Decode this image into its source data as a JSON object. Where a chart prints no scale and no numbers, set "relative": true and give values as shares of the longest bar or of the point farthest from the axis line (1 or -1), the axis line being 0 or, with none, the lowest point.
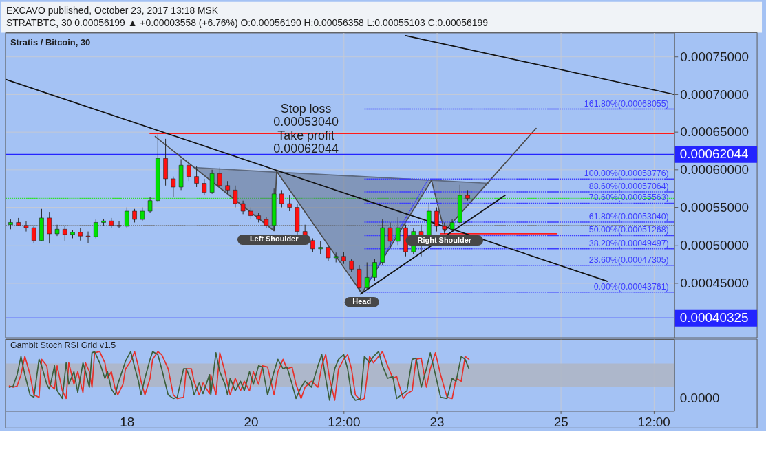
{
  "chart_data": [
    {
      "type": "candlestick",
      "title": "Stratis / Bitcoin, 30",
      "annotations": [
        "EXCAVO published, October 23, 2017 13:18 MSK",
        "STRATBTC, 30 0.00056199 ▲ +0.00003558 (+6.76%) O:0.00056190 H:0.00056358 L:0.00055103 C:0.00056199",
        "Stop loss\n0.00053040\nTake profit\n0.00062044",
        {
          "text": "Left Shoulder",
          "x": "2017-10-20T09:00",
          "y": 0.000519
        },
        {
          "text": "Head",
          "x": "2017-10-21T19:00",
          "y": 0.000436
        },
        {
          "text": "Right Shoulder",
          "x": "2017-10-23T03:00",
          "y": 0.000518
        }
      ],
      "x": [
        "2017-10-16T03:00",
        "2017-10-16T06:00",
        "2017-10-16T09:00",
        "2017-10-16T12:00",
        "2017-10-16T15:00",
        "2017-10-16T18:00",
        "2017-10-16T21:00",
        "2017-10-17T00:00",
        "2017-10-17T03:00",
        "2017-10-17T06:00",
        "2017-10-17T09:00",
        "2017-10-17T12:00",
        "2017-10-17T15:00",
        "2017-10-17T18:00",
        "2017-10-17T21:00",
        "2017-10-18T00:00",
        "2017-10-18T03:00",
        "2017-10-18T06:00",
        "2017-10-18T09:00",
        "2017-10-18T12:00",
        "2017-10-18T15:00",
        "2017-10-18T18:00",
        "2017-10-18T21:00",
        "2017-10-19T00:00",
        "2017-10-19T03:00",
        "2017-10-19T06:00",
        "2017-10-19T09:00",
        "2017-10-19T12:00",
        "2017-10-19T15:00",
        "2017-10-19T18:00",
        "2017-10-19T21:00",
        "2017-10-20T00:00",
        "2017-10-20T03:00",
        "2017-10-20T06:00",
        "2017-10-20T09:00",
        "2017-10-20T12:00",
        "2017-10-20T15:00",
        "2017-10-20T18:00",
        "2017-10-20T21:00",
        "2017-10-21T00:00",
        "2017-10-21T03:00",
        "2017-10-21T06:00",
        "2017-10-21T09:00",
        "2017-10-21T12:00",
        "2017-10-21T15:00",
        "2017-10-21T18:00",
        "2017-10-21T21:00",
        "2017-10-22T00:00",
        "2017-10-22T03:00",
        "2017-10-22T06:00",
        "2017-10-22T09:00",
        "2017-10-22T12:00",
        "2017-10-22T15:00",
        "2017-10-22T18:00",
        "2017-10-22T21:00",
        "2017-10-23T00:00",
        "2017-10-23T03:00",
        "2017-10-23T06:00",
        "2017-10-23T09:00",
        "2017-10-23T12:00"
      ],
      "ohlc": [
        [
          0.000527,
          0.000534,
          0.000521,
          0.00053
        ],
        [
          0.00053,
          0.000536,
          0.000525,
          0.000526
        ],
        [
          0.000526,
          0.000532,
          0.000518,
          0.000523
        ],
        [
          0.000523,
          0.000525,
          0.000503,
          0.000506
        ],
        [
          0.000506,
          0.000548,
          0.000505,
          0.000536
        ],
        [
          0.000536,
          0.000544,
          0.000502,
          0.000515
        ],
        [
          0.000515,
          0.000527,
          0.000512,
          0.000521
        ],
        [
          0.000521,
          0.000525,
          0.000505,
          0.000514
        ],
        [
          0.000514,
          0.00052,
          0.000509,
          0.000517
        ],
        [
          0.000517,
          0.000523,
          0.000506,
          0.000512
        ],
        [
          0.000512,
          0.000518,
          0.000503,
          0.000511
        ],
        [
          0.000511,
          0.000534,
          0.000509,
          0.00053
        ],
        [
          0.00053,
          0.000535,
          0.000525,
          0.000532
        ],
        [
          0.000532,
          0.000536,
          0.000523,
          0.000526
        ],
        [
          0.000526,
          0.000532,
          0.000523,
          0.000525
        ],
        [
          0.000525,
          0.00055,
          0.000523,
          0.000545
        ],
        [
          0.000545,
          0.000548,
          0.00053,
          0.000534
        ],
        [
          0.000534,
          0.00055,
          0.000532,
          0.000545
        ],
        [
          0.000545,
          0.000564,
          0.000543,
          0.000559
        ],
        [
          0.000559,
          0.000647,
          0.000557,
          0.000615
        ],
        [
          0.000615,
          0.000641,
          0.000579,
          0.000588
        ],
        [
          0.000588,
          0.000591,
          0.000564,
          0.000577
        ],
        [
          0.000577,
          0.000614,
          0.000573,
          0.000606
        ],
        [
          0.000606,
          0.000612,
          0.000585,
          0.000591
        ],
        [
          0.000591,
          0.000605,
          0.000577,
          0.000582
        ],
        [
          0.000582,
          0.000588,
          0.000566,
          0.00057
        ],
        [
          0.00057,
          0.0006,
          0.000568,
          0.000595
        ],
        [
          0.000595,
          0.000603,
          0.000575,
          0.000579
        ],
        [
          0.000579,
          0.000585,
          0.000568,
          0.000573
        ],
        [
          0.000573,
          0.000579,
          0.00055,
          0.000555
        ],
        [
          0.000555,
          0.000559,
          0.000541,
          0.000545
        ],
        [
          0.000545,
          0.00055,
          0.000534,
          0.000539
        ],
        [
          0.000539,
          0.000543,
          0.00053,
          0.000534
        ],
        [
          0.000534,
          0.000537,
          0.000523,
          0.000526
        ],
        [
          0.000526,
          0.000575,
          0.000519,
          0.000568
        ],
        [
          0.000568,
          0.000573,
          0.00055,
          0.000555
        ],
        [
          0.000555,
          0.000566,
          0.000545,
          0.00055
        ],
        [
          0.00055,
          0.000555,
          0.000514,
          0.000518
        ],
        [
          0.000518,
          0.000527,
          0.000505,
          0.000506
        ],
        [
          0.000506,
          0.000509,
          0.000491,
          0.000495
        ],
        [
          0.000495,
          0.000505,
          0.000488,
          0.000497
        ],
        [
          0.000497,
          0.0005,
          0.000479,
          0.000483
        ],
        [
          0.000483,
          0.00049,
          0.000477,
          0.000485
        ],
        [
          0.000485,
          0.000491,
          0.000475,
          0.000479
        ],
        [
          0.000479,
          0.000482,
          0.000464,
          0.000468
        ],
        [
          0.000468,
          0.000473,
          0.000438,
          0.000443
        ],
        [
          0.000443,
          0.000477,
          0.00044,
          0.000457
        ],
        [
          0.000457,
          0.000482,
          0.000452,
          0.000477
        ],
        [
          0.000477,
          0.000534,
          0.000473,
          0.000523
        ],
        [
          0.000523,
          0.00053,
          0.000495,
          0.000505
        ],
        [
          0.000505,
          0.000537,
          0.0005,
          0.000523
        ],
        [
          0.000523,
          0.000527,
          0.000485,
          0.000491
        ],
        [
          0.000491,
          0.000523,
          0.000488,
          0.000518
        ],
        [
          0.000518,
          0.000527,
          0.000485,
          0.0005
        ],
        [
          0.0005,
          0.000555,
          0.000497,
          0.000545
        ],
        [
          0.000545,
          0.00055,
          0.000518,
          0.000525
        ],
        [
          0.000525,
          0.00053,
          0.000515,
          0.000521
        ],
        [
          0.000521,
          0.000534,
          0.000518,
          0.00053
        ],
        [
          0.00053,
          0.00058,
          0.000527,
          0.000566
        ],
        [
          0.000566,
          0.000573,
          0.000559,
          0.00056199
        ]
      ],
      "colors": [
        "#00e000",
        "#ff1010",
        "#ff1010",
        "#ff1010",
        "#00e000",
        "#ff1010",
        "#00e000",
        "#ff1010",
        "#00e000",
        "#ff1010",
        "#ff1010",
        "#00e000",
        "#00e000",
        "#ff1010",
        "#ff1010",
        "#00e000",
        "#ff1010",
        "#00e000",
        "#00e000",
        "#00e000",
        "#ff1010",
        "#ff1010",
        "#00e000",
        "#ff1010",
        "#ff1010",
        "#ff1010",
        "#00e000",
        "#ff1010",
        "#ff1010",
        "#ff1010",
        "#ff1010",
        "#ff1010",
        "#ff1010",
        "#ff1010",
        "#00e000",
        "#ff1010",
        "#ff1010",
        "#ff1010",
        "#ff1010",
        "#ff1010",
        "#00e000",
        "#ff1010",
        "#00e000",
        "#ff1010",
        "#ff1010",
        "#ff1010",
        "#00e000",
        "#00e000",
        "#00e000",
        "#ff1010",
        "#00e000",
        "#ff1010",
        "#00e000",
        "#ff1010",
        "#00e000",
        "#ff1010",
        "#ff1010",
        "#00e000",
        "#00e000",
        "#ff1010"
      ],
      "xlim": [
        "2017-10-16T01:00",
        "2017-10-26T20:00"
      ],
      "xticks": [
        {
          "value": "2017-10-18T00:00",
          "label": null
        },
        {
          "value": "2017-10-20T00:00",
          "label": null
        },
        {
          "value": "2017-10-21T12:00",
          "label": null
        },
        {
          "value": "2017-10-23T00:00",
          "label": null
        },
        {
          "value": "2017-10-25T00:00",
          "label": null
        },
        {
          "value": "2017-10-26T12:00",
          "label": null
        }
      ],
      "ylim": [
        0.000377,
        0.000782
      ],
      "yticks": [
        {
          "value": 0.00045,
          "label": "0.00045000"
        },
        {
          "value": 0.0005,
          "label": "0.00050000"
        },
        {
          "value": 0.00055,
          "label": "0.00055000"
        },
        {
          "value": 0.0006,
          "label": "0.00060000"
        },
        {
          "value": 0.00065,
          "label": "0.00065000"
        },
        {
          "value": 0.0007,
          "label": "0.00070000"
        },
        {
          "value": 0.00075,
          "label": "0.00075000"
        }
      ],
      "grid": true,
      "tick_labels": "y",
      "ref_lines": [
        {
          "axis": "y",
          "value": 0.00062044,
          "label": "0.00062044",
          "color": "#2424ff"
        },
        {
          "axis": "y",
          "value": 0.00040325,
          "label": "0.00040325",
          "color": "#2424ff"
        },
        {
          "axis": "y",
          "value": 0.00056199,
          "color": "#30e030",
          "line_style": "dotted"
        },
        {
          "axis": "y",
          "value": 0.000526,
          "color": "#6e6e6e",
          "line_style": "dotted"
        }
      ],
      "series": [
        {
          "type": "line",
          "x": [
            "2017-10-19T02:00",
            "2017-10-20T09:00",
            "2017-10-20T10:00",
            "2017-10-21T19:00",
            "2017-10-22T22:00",
            "2017-10-23T03:00",
            "2017-10-23T20:00"
          ],
          "values": [
            0.000603,
            0.000597,
            0.000597,
            0.000591,
            0.000586,
            0.000585,
            0.000582
          ],
          "lower": [
            0.000603,
            0.000519,
            0.000597,
            0.000436,
            0.000586,
            0.000518,
            0.000582
          ],
          "upper": [
            0.000603,
            0.000597,
            0.000597,
            0.000591,
            0.000586,
            0.000585,
            0.000582
          ],
          "color": "#5d6a80"
        },
        {
          "type": "line",
          "x": [
            "2017-10-18T11:00",
            "2017-10-20T09:00",
            "2017-10-20T10:00",
            "2017-10-21T19:00",
            "2017-10-22T22:00",
            "2017-10-23T03:00",
            "2017-10-24T14:30"
          ],
          "values": [
            0.000644,
            0.000519,
            0.000598,
            0.000436,
            0.000586,
            0.000518,
            0.000655
          ],
          "color": "#4a4a4a"
        },
        {
          "type": "line",
          "x": [
            "2017-10-21T22:00",
            "2017-10-22T20:30"
          ],
          "values": [
            0.000453,
            0.000586
          ],
          "color": "#3d3dff",
          "line_style": "dotted"
        },
        {
          "type": "line",
          "name": "161.80%(0.00068055)",
          "x": [
            "2017-10-21T20:00",
            "2017-10-26T20:00"
          ],
          "values": [
            0.00068055,
            0.00068055
          ],
          "color": "#3d3dff",
          "line_style": "dotted"
        },
        {
          "type": "line",
          "name": "100.00%(0.00058776)",
          "x": [
            "2017-10-21T20:00",
            "2017-10-26T20:00"
          ],
          "values": [
            0.00058776,
            0.00058776
          ],
          "color": "#3d3dff",
          "line_style": "dotted"
        },
        {
          "type": "line",
          "name": "88.60%(0.00057064)",
          "x": [
            "2017-10-21T20:00",
            "2017-10-26T20:00"
          ],
          "values": [
            0.00057064,
            0.00057064
          ],
          "color": "#3d3dff",
          "line_style": "dotted"
        },
        {
          "type": "line",
          "name": "78.60%(0.00055563)",
          "x": [
            "2017-10-21T20:00",
            "2017-10-26T20:00"
          ],
          "values": [
            0.00055563,
            0.00055563
          ],
          "color": "#3d3dff",
          "line_style": "dotted"
        },
        {
          "type": "line",
          "name": "61.80%(0.00053040)",
          "x": [
            "2017-10-21T20:00",
            "2017-10-26T20:00"
          ],
          "values": [
            0.0005304,
            0.0005304
          ],
          "color": "#3d3dff",
          "line_style": "dotted"
        },
        {
          "type": "line",
          "name": "50.00%(0.00051268)",
          "x": [
            "2017-10-21T20:00",
            "2017-10-26T20:00"
          ],
          "values": [
            0.00051268,
            0.00051268
          ],
          "color": "#3d3dff",
          "line_style": "dotted"
        },
        {
          "type": "line",
          "name": "38.20%(0.00049497)",
          "x": [
            "2017-10-21T20:00",
            "2017-10-26T20:00"
          ],
          "values": [
            0.00049497,
            0.00049497
          ],
          "color": "#3d3dff",
          "line_style": "dotted"
        },
        {
          "type": "line",
          "name": "23.60%(0.00047305)",
          "x": [
            "2017-10-21T20:00",
            "2017-10-26T20:00"
          ],
          "values": [
            0.00047305,
            0.00047305
          ],
          "color": "#3d3dff",
          "line_style": "dotted"
        },
        {
          "type": "line",
          "name": "0.00%(0.00043761)",
          "x": [
            "2017-10-21T20:00",
            "2017-10-26T20:00"
          ],
          "values": [
            0.00043761,
            0.00043761
          ],
          "color": "#3d3dff",
          "line_style": "dotted"
        },
        {
          "type": "line",
          "x": [
            "2017-10-18T09:00",
            "2017-10-26T20:00"
          ],
          "values": [
            0.000648,
            0.000648
          ],
          "color": "#ff1a1a"
        },
        {
          "type": "line",
          "x": [
            "2017-10-23T01:30",
            "2017-10-24T22:30"
          ],
          "values": [
            0.000515,
            0.000515
          ],
          "color": "#ff1a1a"
        },
        {
          "type": "line",
          "x": [
            "2017-10-16T01:00",
            "2017-10-25T18:00"
          ],
          "values": [
            0.00072,
            0.000452
          ],
          "color": "#111111"
        },
        {
          "type": "line",
          "x": [
            "2017-10-22T12:00",
            "2017-10-26T20:00"
          ],
          "values": [
            0.000778,
            0.0007
          ],
          "color": "#111111"
        },
        {
          "type": "line",
          "x": [
            "2017-10-21T18:30",
            "2017-10-24T02:30"
          ],
          "values": [
            0.000435,
            0.000566
          ],
          "color": "#111111"
        }
      ]
    },
    {
      "type": "line",
      "title": "Gambit Stoch RSI Grid v1.5",
      "annotations": [
        "0.0000"
      ],
      "relative": true,
      "x": [
        "2017-10-16T02:30",
        "2017-10-16T04:00",
        "2017-10-16T05:30",
        "2017-10-16T07:00",
        "2017-10-16T08:30",
        "2017-10-16T10:30",
        "2017-10-16T12:00",
        "2017-10-16T14:00",
        "2017-10-16T15:00",
        "2017-10-16T17:00",
        "2017-10-16T18:00",
        "2017-10-16T20:00",
        "2017-10-16T21:00",
        "2017-10-16T23:00",
        "2017-10-17T00:30",
        "2017-10-17T01:30",
        "2017-10-17T03:30",
        "2017-10-17T05:00",
        "2017-10-17T07:00",
        "2017-10-17T08:00",
        "2017-10-17T09:30",
        "2017-10-17T10:30",
        "2017-10-17T11:30",
        "2017-10-17T13:30",
        "2017-10-17T15:30",
        "2017-10-17T16:30",
        "2017-10-17T18:00",
        "2017-10-17T19:30",
        "2017-10-17T20:30",
        "2017-10-17T22:30",
        "2017-10-17T23:30",
        "2017-10-18T01:30",
        "2017-10-18T03:00",
        "2017-10-18T04:30",
        "2017-10-18T05:30",
        "2017-10-18T07:00",
        "2017-10-18T09:00",
        "2017-10-18T10:00",
        "2017-10-18T12:00",
        "2017-10-18T13:30",
        "2017-10-18T16:00",
        "2017-10-18T18:00",
        "2017-10-18T19:30",
        "2017-10-18T22:00",
        "2017-10-18T23:00",
        "2017-10-19T01:00",
        "2017-10-19T02:00",
        "2017-10-19T04:00",
        "2017-10-19T05:30",
        "2017-10-19T08:00",
        "2017-10-19T08:30",
        "2017-10-19T10:30",
        "2017-10-19T12:00",
        "2017-10-19T14:00",
        "2017-10-19T15:00",
        "2017-10-19T16:00",
        "2017-10-19T18:00",
        "2017-10-19T20:00",
        "2017-10-19T21:30",
        "2017-10-19T23:30",
        "2017-10-20T01:00",
        "2017-10-20T03:00",
        "2017-10-20T04:30",
        "2017-10-20T06:30",
        "2017-10-20T09:00",
        "2017-10-20T10:30",
        "2017-10-20T12:30",
        "2017-10-20T14:00",
        "2017-10-20T16:00",
        "2017-10-20T17:30",
        "2017-10-20T19:30",
        "2017-10-20T21:00",
        "2017-10-20T23:30",
        "2017-10-21T02:00",
        "2017-10-21T03:30",
        "2017-10-21T05:00",
        "2017-10-21T06:30",
        "2017-10-21T08:30",
        "2017-10-21T10:00",
        "2017-10-21T12:00",
        "2017-10-21T13:30",
        "2017-10-21T15:00",
        "2017-10-21T16:30",
        "2017-10-21T18:30",
        "2017-10-21T20:00",
        "2017-10-21T22:00",
        "2017-10-21T23:30",
        "2017-10-22T01:30",
        "2017-10-22T03:00",
        "2017-10-22T05:00",
        "2017-10-22T07:00",
        "2017-10-22T08:30",
        "2017-10-22T11:00",
        "2017-10-22T12:30",
        "2017-10-22T14:30",
        "2017-10-22T16:00",
        "2017-10-22T18:00",
        "2017-10-22T20:00",
        "2017-10-22T21:30",
        "2017-10-22T23:30",
        "2017-10-23T01:30",
        "2017-10-23T04:00",
        "2017-10-23T06:00",
        "2017-10-23T07:30",
        "2017-10-23T09:30",
        "2017-10-23T11:00",
        "2017-10-23T12:30"
      ],
      "series": [
        {
          "color": "#e8302a",
          "values": [
            0.42,
            0.4,
            0.42,
            0.61,
            0.92,
            0.61,
            0.27,
            0.23,
            0.87,
            0.76,
            0.45,
            0.37,
            0.76,
            0.34,
            0.21,
            0.81,
            0.45,
            0.66,
            0.31,
            0.81,
            0.66,
            0.4,
            0.98,
            1.0,
            0.81,
            0.55,
            0.66,
            0.37,
            0.27,
            0.45,
            0.71,
            0.84,
            1.0,
            0.74,
            0.5,
            0.27,
            0.55,
            0.87,
            1.0,
            0.95,
            0.71,
            0.27,
            0.21,
            0.23,
            0.71,
            0.71,
            0.5,
            0.27,
            0.47,
            0.29,
            0.61,
            0.27,
            0.98,
            0.66,
            0.45,
            0.27,
            0.55,
            0.34,
            0.5,
            0.34,
            0.66,
            0.45,
            0.76,
            0.74,
            0.27,
            0.66,
            0.87,
            0.71,
            0.74,
            0.45,
            0.21,
            0.4,
            0.5,
            0.4,
            0.76,
            0.95,
            0.55,
            0.18,
            0.71,
            0.87,
            0.95,
            0.71,
            0.27,
            0.18,
            0.21,
            0.92,
            0.81,
            0.92,
            1.0,
            0.76,
            0.55,
            0.58,
            0.21,
            0.29,
            0.34,
            0.87,
            0.89,
            0.4,
            0.71,
            0.98,
            0.61,
            0.23,
            0.21,
            0.55,
            0.5,
            0.92,
            0.87
          ]
        },
        {
          "color": "#3b5f3b",
          "values": [
            0.4,
            0.42,
            0.61,
            0.92,
            0.61,
            0.27,
            0.23,
            0.87,
            0.76,
            0.45,
            0.37,
            0.76,
            0.34,
            0.21,
            0.81,
            0.45,
            0.66,
            0.31,
            0.81,
            0.66,
            0.4,
            0.98,
            1.0,
            0.81,
            0.55,
            0.66,
            0.37,
            0.27,
            0.45,
            0.71,
            0.84,
            1.0,
            0.74,
            0.5,
            0.27,
            0.55,
            0.87,
            1.0,
            0.95,
            0.71,
            0.27,
            0.21,
            0.23,
            0.71,
            0.71,
            0.5,
            0.27,
            0.47,
            0.29,
            0.61,
            0.27,
            0.98,
            0.66,
            0.45,
            0.27,
            0.55,
            0.34,
            0.5,
            0.34,
            0.66,
            0.45,
            0.76,
            0.74,
            0.27,
            0.66,
            0.87,
            0.71,
            0.74,
            0.45,
            0.21,
            0.4,
            0.5,
            0.4,
            0.76,
            0.95,
            0.55,
            0.18,
            0.71,
            0.87,
            0.95,
            0.71,
            0.27,
            0.18,
            0.21,
            0.92,
            0.81,
            0.92,
            1.0,
            0.76,
            0.55,
            0.58,
            0.21,
            0.29,
            0.34,
            0.87,
            0.89,
            0.4,
            0.71,
            0.98,
            0.61,
            0.23,
            0.21,
            0.55,
            0.5,
            0.92,
            0.87,
            0.71
          ]
        }
      ],
      "xlim": [
        "2017-10-16T01:00",
        "2017-10-26T20:00"
      ],
      "xticks": [
        {
          "value": "2017-10-18T00:00",
          "label": "18"
        },
        {
          "value": "2017-10-20T00:00",
          "label": "20"
        },
        {
          "value": "2017-10-21T12:00",
          "label": "12:00"
        },
        {
          "value": "2017-10-23T00:00",
          "label": "23"
        },
        {
          "value": "2017-10-25T00:00",
          "label": "25"
        },
        {
          "value": "2017-10-26T12:00",
          "label": "12:00"
        }
      ],
      "tick_labels": "x",
      "grid": "x",
      "bands": [
        {
          "axis": "y",
          "from": 0.4,
          "to": 0.8,
          "color": "#aeb6c6"
        }
      ]
    }
  ]
}
